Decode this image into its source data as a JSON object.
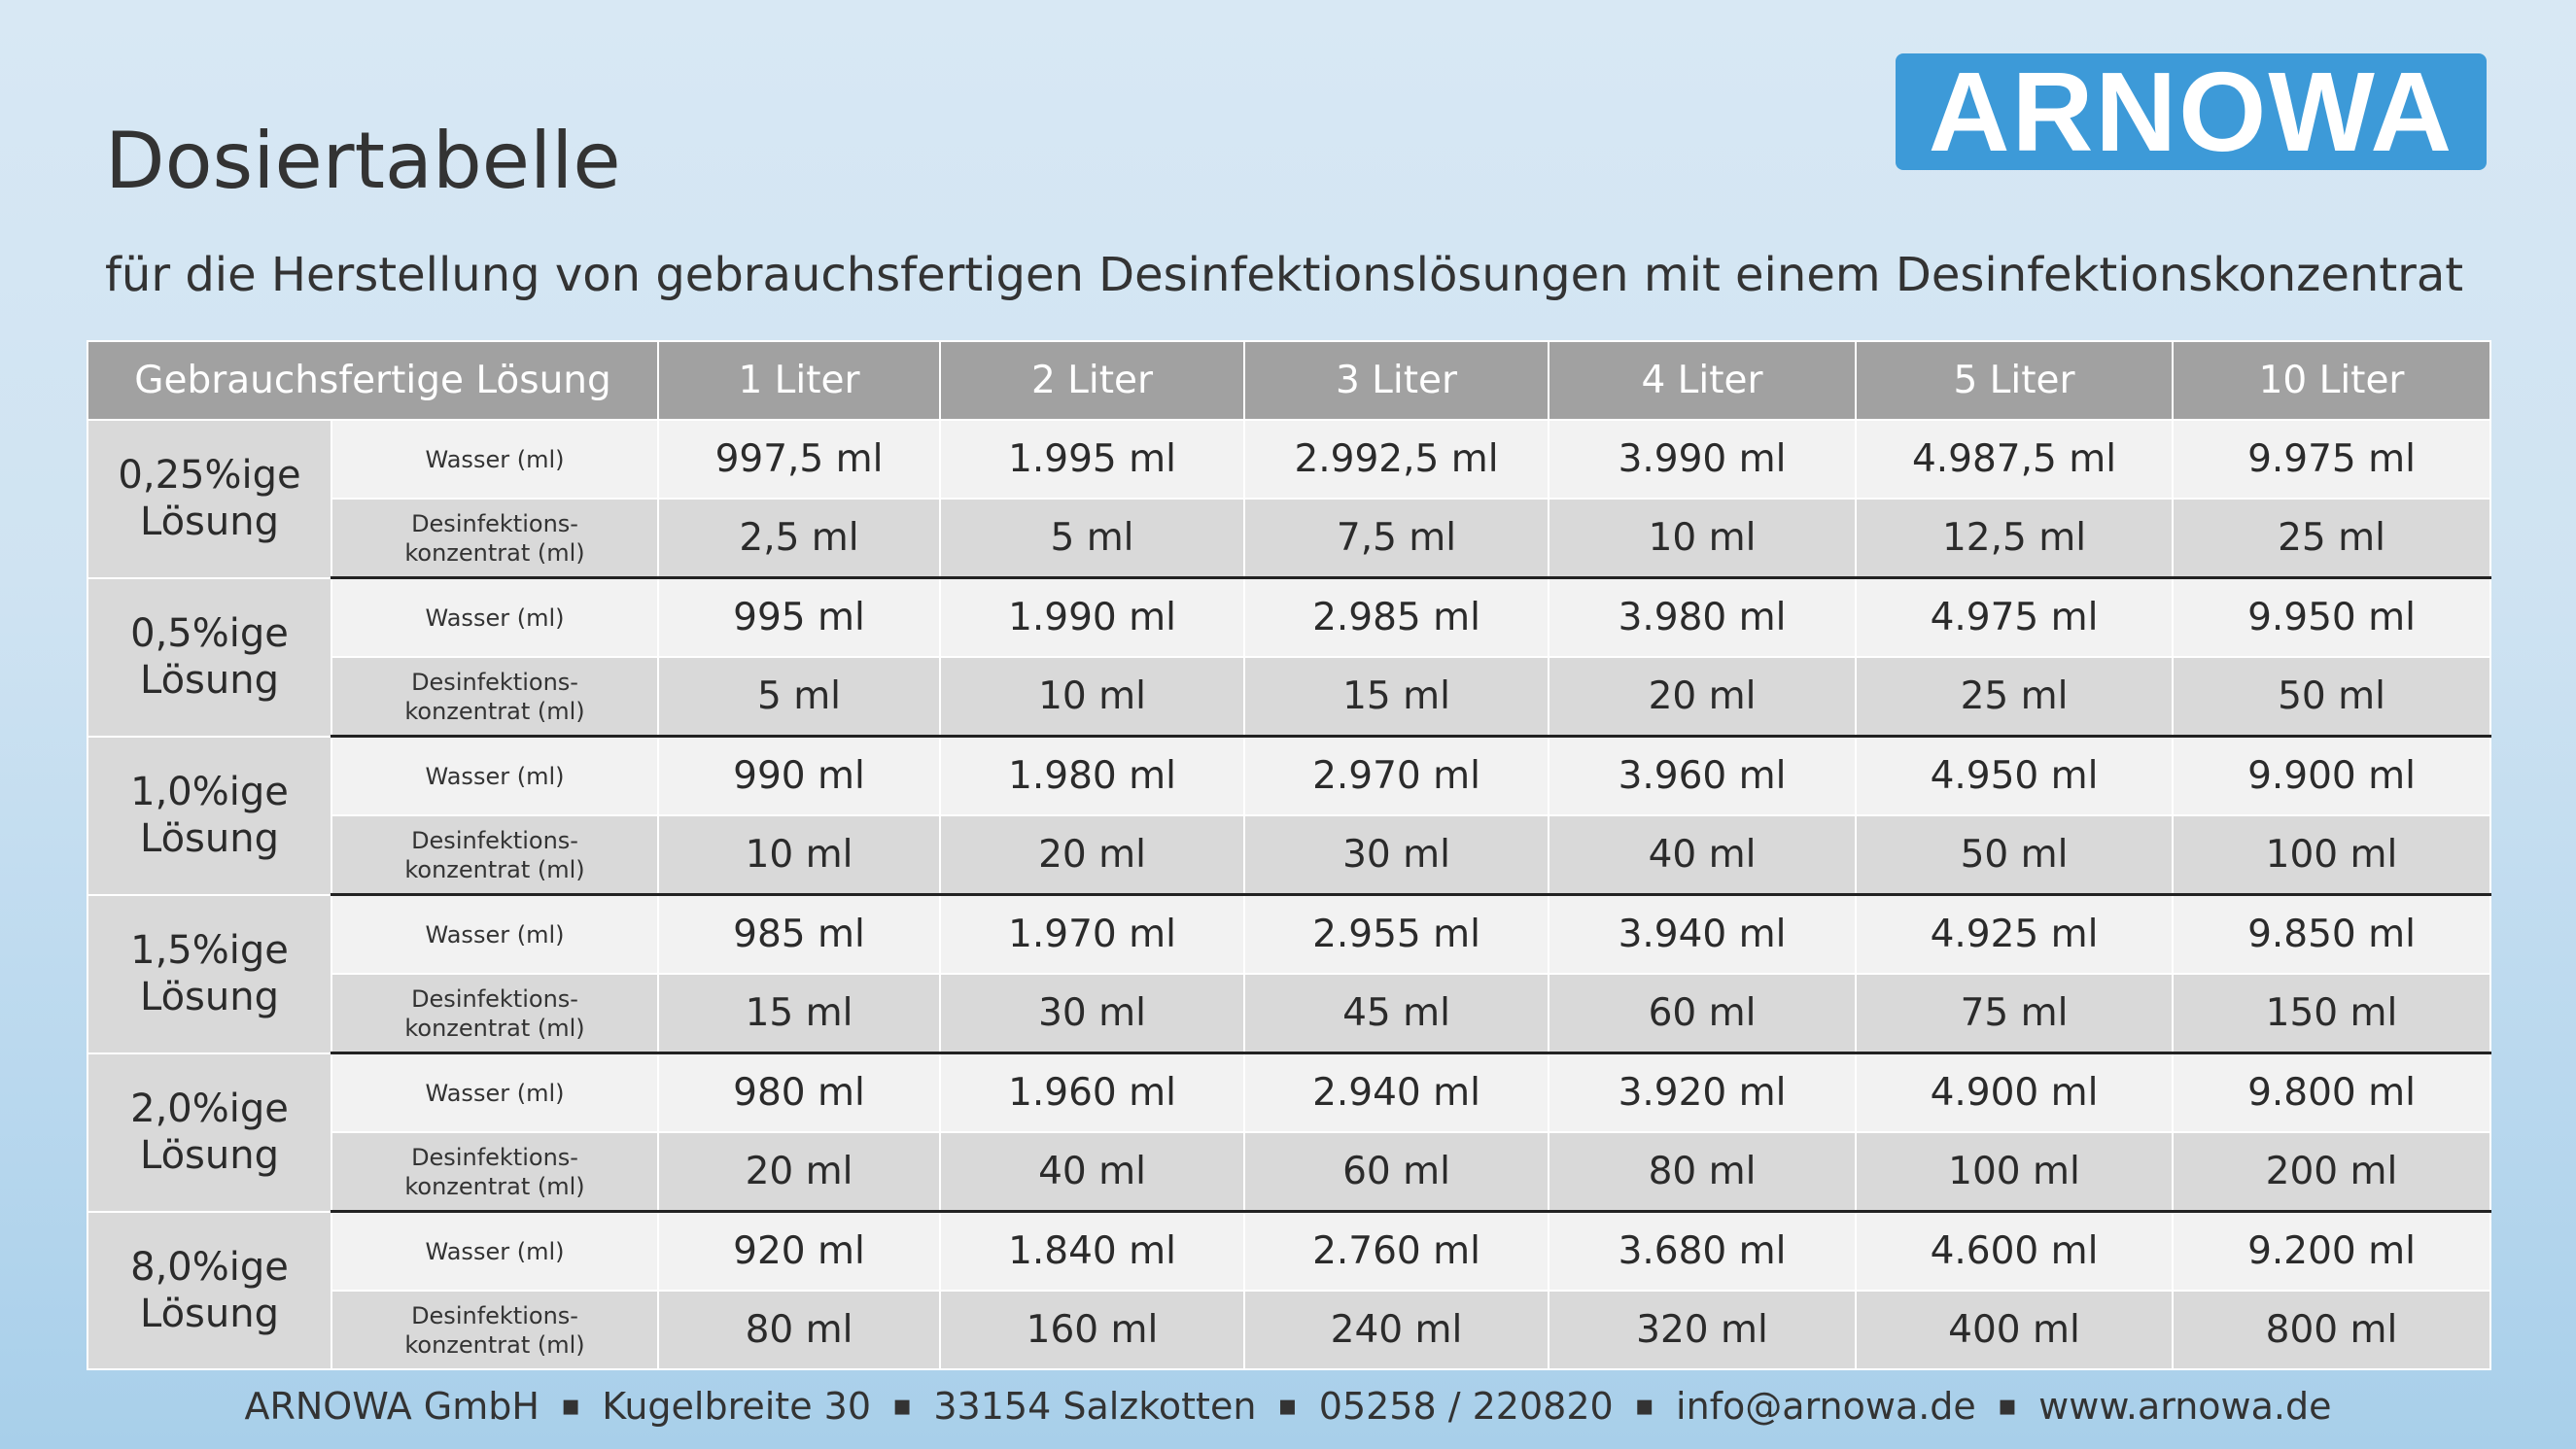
{
  "logo": {
    "text": "ARNOWA",
    "color": "#3d9ad8"
  },
  "title": "Dosiertabelle",
  "subtitle": "für die Herstellung von gebrauchsfertigen Desinfektionslösungen mit einem Desinfektionskonzentrat",
  "table": {
    "headers": [
      "Gebrauchsfertige Lösung",
      "1 Liter",
      "2 Liter",
      "3 Liter",
      "4 Liter",
      "5 Liter",
      "10 Liter"
    ],
    "row_labels": {
      "water": "Wasser (ml)",
      "concentrate_1": "Desinfektions-",
      "concentrate_2": "konzentrat (ml)"
    },
    "groups": [
      {
        "conc_1": "0,25%ige",
        "conc_2": "Lösung",
        "water": [
          "997,5 ml",
          "1.995 ml",
          "2.992,5 ml",
          "3.990 ml",
          "4.987,5 ml",
          "9.975 ml"
        ],
        "concentrate": [
          "2,5 ml",
          "5 ml",
          "7,5 ml",
          "10 ml",
          "12,5 ml",
          "25 ml"
        ]
      },
      {
        "conc_1": "0,5%ige",
        "conc_2": "Lösung",
        "water": [
          "995 ml",
          "1.990 ml",
          "2.985 ml",
          "3.980 ml",
          "4.975 ml",
          "9.950 ml"
        ],
        "concentrate": [
          "5 ml",
          "10 ml",
          "15 ml",
          "20 ml",
          "25 ml",
          "50 ml"
        ]
      },
      {
        "conc_1": "1,0%ige",
        "conc_2": "Lösung",
        "water": [
          "990 ml",
          "1.980 ml",
          "2.970 ml",
          "3.960 ml",
          "4.950 ml",
          "9.900 ml"
        ],
        "concentrate": [
          "10 ml",
          "20 ml",
          "30 ml",
          "40 ml",
          "50 ml",
          "100 ml"
        ]
      },
      {
        "conc_1": "1,5%ige",
        "conc_2": "Lösung",
        "water": [
          "985 ml",
          "1.970 ml",
          "2.955 ml",
          "3.940 ml",
          "4.925 ml",
          "9.850 ml"
        ],
        "concentrate": [
          "15 ml",
          "30 ml",
          "45 ml",
          "60 ml",
          "75 ml",
          "150 ml"
        ]
      },
      {
        "conc_1": "2,0%ige",
        "conc_2": "Lösung",
        "water": [
          "980 ml",
          "1.960 ml",
          "2.940 ml",
          "3.920 ml",
          "4.900 ml",
          "9.800 ml"
        ],
        "concentrate": [
          "20 ml",
          "40 ml",
          "60 ml",
          "80 ml",
          "100 ml",
          "200 ml"
        ]
      },
      {
        "conc_1": "8,0%ige",
        "conc_2": "Lösung",
        "water": [
          "920 ml",
          "1.840 ml",
          "2.760 ml",
          "3.680 ml",
          "4.600 ml",
          "9.200 ml"
        ],
        "concentrate": [
          "80 ml",
          "160 ml",
          "240 ml",
          "320 ml",
          "400 ml",
          "800 ml"
        ]
      }
    ]
  },
  "footer": {
    "company": "ARNOWA GmbH",
    "street": "Kugelbreite 30",
    "city": "33154 Salzkotten",
    "phone": "05258 / 220820",
    "email": "info@arnowa.de",
    "web": "www.arnowa.de",
    "separator": "▪"
  }
}
